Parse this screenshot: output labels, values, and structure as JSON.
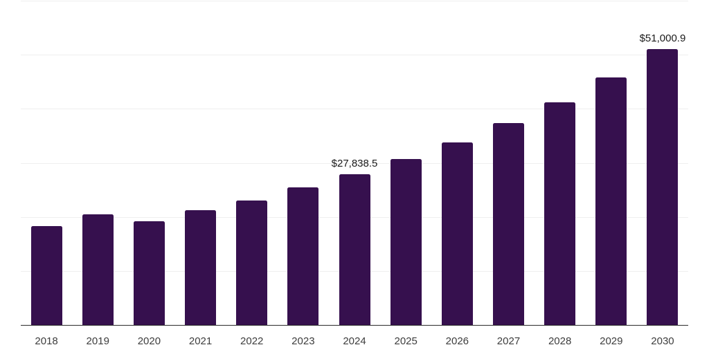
{
  "chart_data": {
    "type": "bar",
    "title": "",
    "xlabel": "",
    "ylabel": "",
    "categories": [
      "2018",
      "2019",
      "2020",
      "2021",
      "2022",
      "2023",
      "2024",
      "2025",
      "2026",
      "2027",
      "2028",
      "2029",
      "2030"
    ],
    "values": [
      18300,
      20450,
      19200,
      21250,
      23050,
      25400,
      27838.5,
      30750,
      33800,
      37400,
      41250,
      45800,
      51000.9
    ],
    "annotations": [
      {
        "category": "2024",
        "text": "$27,838.5"
      },
      {
        "category": "2030",
        "text": "$51,000.9"
      }
    ],
    "ylim": [
      0,
      60000
    ],
    "gridline_step": 10000,
    "grid": "horizontal only, no y-axis tick labels",
    "legend": "none",
    "colors": {
      "bar": "#36104E",
      "gridline": "#efefef",
      "axis_line": "#2a2a2a",
      "value_label": "#1a1a1a",
      "tick_label": "#3d3d3d",
      "background": "#ffffff"
    }
  }
}
